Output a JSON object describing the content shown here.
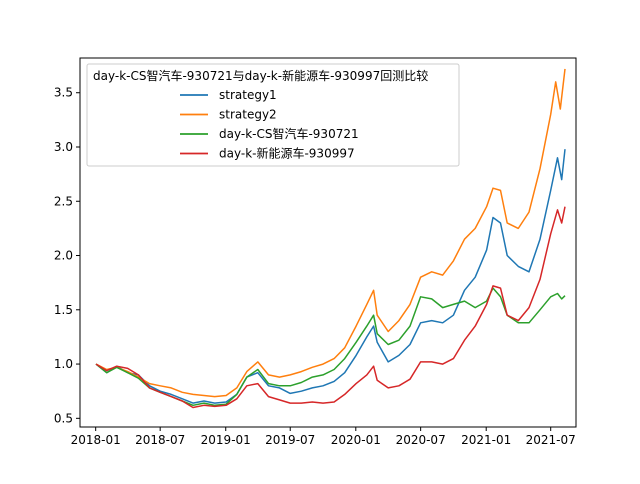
{
  "chart_data": {
    "type": "line",
    "xlabel": "",
    "ylabel": "",
    "xlim": [
      "2017-11-18",
      "2021-09-10"
    ],
    "ylim": [
      0.42,
      3.82
    ],
    "xticks": [
      "2018-01",
      "2018-07",
      "2019-01",
      "2019-07",
      "2020-01",
      "2020-07",
      "2021-01",
      "2021-07"
    ],
    "yticks": [
      "0.5",
      "1.0",
      "1.5",
      "2.0",
      "2.5",
      "3.0",
      "3.5"
    ],
    "legend": {
      "title": "day-k-CS智汽车-930721与day-k-新能源车-930997回测比较",
      "position": "upper-left"
    },
    "grid": false,
    "series": [
      {
        "name": "strategy1",
        "color": "#1f77b4",
        "points": [
          [
            "2018-01-02",
            1.0
          ],
          [
            "2018-02-01",
            0.92
          ],
          [
            "2018-03-01",
            0.98
          ],
          [
            "2018-04-01",
            0.92
          ],
          [
            "2018-05-01",
            0.9
          ],
          [
            "2018-06-01",
            0.8
          ],
          [
            "2018-07-01",
            0.75
          ],
          [
            "2018-08-01",
            0.72
          ],
          [
            "2018-09-01",
            0.68
          ],
          [
            "2018-10-01",
            0.64
          ],
          [
            "2018-11-01",
            0.66
          ],
          [
            "2018-12-01",
            0.64
          ],
          [
            "2019-01-02",
            0.65
          ],
          [
            "2019-02-01",
            0.72
          ],
          [
            "2019-03-01",
            0.88
          ],
          [
            "2019-04-01",
            0.92
          ],
          [
            "2019-05-01",
            0.8
          ],
          [
            "2019-06-01",
            0.78
          ],
          [
            "2019-07-01",
            0.73
          ],
          [
            "2019-08-01",
            0.75
          ],
          [
            "2019-09-01",
            0.78
          ],
          [
            "2019-10-01",
            0.8
          ],
          [
            "2019-11-01",
            0.84
          ],
          [
            "2019-12-01",
            0.92
          ],
          [
            "2020-01-02",
            1.08
          ],
          [
            "2020-02-01",
            1.25
          ],
          [
            "2020-02-20",
            1.35
          ],
          [
            "2020-03-01",
            1.2
          ],
          [
            "2020-04-01",
            1.02
          ],
          [
            "2020-05-01",
            1.08
          ],
          [
            "2020-06-01",
            1.18
          ],
          [
            "2020-07-01",
            1.38
          ],
          [
            "2020-08-01",
            1.4
          ],
          [
            "2020-09-01",
            1.38
          ],
          [
            "2020-10-01",
            1.45
          ],
          [
            "2020-11-01",
            1.68
          ],
          [
            "2020-12-01",
            1.8
          ],
          [
            "2021-01-02",
            2.05
          ],
          [
            "2021-01-20",
            2.35
          ],
          [
            "2021-02-10",
            2.3
          ],
          [
            "2021-03-01",
            2.0
          ],
          [
            "2021-04-01",
            1.9
          ],
          [
            "2021-05-01",
            1.85
          ],
          [
            "2021-06-01",
            2.15
          ],
          [
            "2021-07-01",
            2.6
          ],
          [
            "2021-07-20",
            2.9
          ],
          [
            "2021-08-01",
            2.7
          ],
          [
            "2021-08-10",
            2.98
          ]
        ]
      },
      {
        "name": "strategy2",
        "color": "#ff7f0e",
        "points": [
          [
            "2018-01-02",
            1.0
          ],
          [
            "2018-02-01",
            0.95
          ],
          [
            "2018-03-01",
            0.97
          ],
          [
            "2018-04-01",
            0.93
          ],
          [
            "2018-05-01",
            0.88
          ],
          [
            "2018-06-01",
            0.82
          ],
          [
            "2018-07-01",
            0.8
          ],
          [
            "2018-08-01",
            0.78
          ],
          [
            "2018-09-01",
            0.74
          ],
          [
            "2018-10-01",
            0.72
          ],
          [
            "2018-11-01",
            0.71
          ],
          [
            "2018-12-01",
            0.7
          ],
          [
            "2019-01-02",
            0.71
          ],
          [
            "2019-02-01",
            0.78
          ],
          [
            "2019-03-01",
            0.93
          ],
          [
            "2019-04-01",
            1.02
          ],
          [
            "2019-05-01",
            0.9
          ],
          [
            "2019-06-01",
            0.88
          ],
          [
            "2019-07-01",
            0.9
          ],
          [
            "2019-08-01",
            0.93
          ],
          [
            "2019-09-01",
            0.97
          ],
          [
            "2019-10-01",
            1.0
          ],
          [
            "2019-11-01",
            1.05
          ],
          [
            "2019-12-01",
            1.15
          ],
          [
            "2020-01-02",
            1.35
          ],
          [
            "2020-02-01",
            1.55
          ],
          [
            "2020-02-20",
            1.68
          ],
          [
            "2020-03-01",
            1.45
          ],
          [
            "2020-04-01",
            1.3
          ],
          [
            "2020-05-01",
            1.4
          ],
          [
            "2020-06-01",
            1.55
          ],
          [
            "2020-07-01",
            1.8
          ],
          [
            "2020-08-01",
            1.85
          ],
          [
            "2020-09-01",
            1.82
          ],
          [
            "2020-10-01",
            1.95
          ],
          [
            "2020-11-01",
            2.15
          ],
          [
            "2020-12-01",
            2.25
          ],
          [
            "2021-01-02",
            2.45
          ],
          [
            "2021-01-20",
            2.62
          ],
          [
            "2021-02-10",
            2.6
          ],
          [
            "2021-03-01",
            2.3
          ],
          [
            "2021-04-01",
            2.25
          ],
          [
            "2021-05-01",
            2.4
          ],
          [
            "2021-06-01",
            2.8
          ],
          [
            "2021-07-01",
            3.3
          ],
          [
            "2021-07-15",
            3.6
          ],
          [
            "2021-07-28",
            3.35
          ],
          [
            "2021-08-10",
            3.72
          ]
        ]
      },
      {
        "name": "day-k-CS智汽车-930721",
        "color": "#2ca02c",
        "points": [
          [
            "2018-01-02",
            1.0
          ],
          [
            "2018-02-01",
            0.92
          ],
          [
            "2018-03-01",
            0.97
          ],
          [
            "2018-04-01",
            0.92
          ],
          [
            "2018-05-01",
            0.87
          ],
          [
            "2018-06-01",
            0.78
          ],
          [
            "2018-07-01",
            0.74
          ],
          [
            "2018-08-01",
            0.7
          ],
          [
            "2018-09-01",
            0.66
          ],
          [
            "2018-10-01",
            0.62
          ],
          [
            "2018-11-01",
            0.64
          ],
          [
            "2018-12-01",
            0.62
          ],
          [
            "2019-01-02",
            0.63
          ],
          [
            "2019-02-01",
            0.72
          ],
          [
            "2019-03-01",
            0.88
          ],
          [
            "2019-04-01",
            0.95
          ],
          [
            "2019-05-01",
            0.82
          ],
          [
            "2019-06-01",
            0.8
          ],
          [
            "2019-07-01",
            0.8
          ],
          [
            "2019-08-01",
            0.83
          ],
          [
            "2019-09-01",
            0.88
          ],
          [
            "2019-10-01",
            0.9
          ],
          [
            "2019-11-01",
            0.95
          ],
          [
            "2019-12-01",
            1.05
          ],
          [
            "2020-01-02",
            1.2
          ],
          [
            "2020-02-01",
            1.35
          ],
          [
            "2020-02-20",
            1.45
          ],
          [
            "2020-03-01",
            1.28
          ],
          [
            "2020-04-01",
            1.18
          ],
          [
            "2020-05-01",
            1.22
          ],
          [
            "2020-06-01",
            1.35
          ],
          [
            "2020-07-01",
            1.62
          ],
          [
            "2020-08-01",
            1.6
          ],
          [
            "2020-09-01",
            1.52
          ],
          [
            "2020-10-01",
            1.55
          ],
          [
            "2020-11-01",
            1.58
          ],
          [
            "2020-12-01",
            1.52
          ],
          [
            "2021-01-02",
            1.58
          ],
          [
            "2021-01-20",
            1.7
          ],
          [
            "2021-02-10",
            1.62
          ],
          [
            "2021-03-01",
            1.45
          ],
          [
            "2021-04-01",
            1.38
          ],
          [
            "2021-05-01",
            1.38
          ],
          [
            "2021-06-01",
            1.5
          ],
          [
            "2021-07-01",
            1.62
          ],
          [
            "2021-07-20",
            1.65
          ],
          [
            "2021-08-01",
            1.6
          ],
          [
            "2021-08-10",
            1.63
          ]
        ]
      },
      {
        "name": "day-k-新能源车-930997",
        "color": "#d62728",
        "points": [
          [
            "2018-01-02",
            1.0
          ],
          [
            "2018-02-01",
            0.94
          ],
          [
            "2018-03-01",
            0.98
          ],
          [
            "2018-04-01",
            0.96
          ],
          [
            "2018-05-01",
            0.9
          ],
          [
            "2018-06-01",
            0.78
          ],
          [
            "2018-07-01",
            0.74
          ],
          [
            "2018-08-01",
            0.7
          ],
          [
            "2018-09-01",
            0.66
          ],
          [
            "2018-10-01",
            0.6
          ],
          [
            "2018-11-01",
            0.62
          ],
          [
            "2018-12-01",
            0.61
          ],
          [
            "2019-01-02",
            0.62
          ],
          [
            "2019-02-01",
            0.68
          ],
          [
            "2019-03-01",
            0.8
          ],
          [
            "2019-04-01",
            0.82
          ],
          [
            "2019-05-01",
            0.7
          ],
          [
            "2019-06-01",
            0.67
          ],
          [
            "2019-07-01",
            0.64
          ],
          [
            "2019-08-01",
            0.64
          ],
          [
            "2019-09-01",
            0.65
          ],
          [
            "2019-10-01",
            0.64
          ],
          [
            "2019-11-01",
            0.65
          ],
          [
            "2019-12-01",
            0.72
          ],
          [
            "2020-01-02",
            0.82
          ],
          [
            "2020-02-01",
            0.9
          ],
          [
            "2020-02-20",
            0.98
          ],
          [
            "2020-03-01",
            0.85
          ],
          [
            "2020-04-01",
            0.78
          ],
          [
            "2020-05-01",
            0.8
          ],
          [
            "2020-06-01",
            0.86
          ],
          [
            "2020-07-01",
            1.02
          ],
          [
            "2020-08-01",
            1.02
          ],
          [
            "2020-09-01",
            1.0
          ],
          [
            "2020-10-01",
            1.05
          ],
          [
            "2020-11-01",
            1.22
          ],
          [
            "2020-12-01",
            1.35
          ],
          [
            "2021-01-02",
            1.55
          ],
          [
            "2021-01-20",
            1.72
          ],
          [
            "2021-02-10",
            1.7
          ],
          [
            "2021-03-01",
            1.45
          ],
          [
            "2021-04-01",
            1.4
          ],
          [
            "2021-05-01",
            1.52
          ],
          [
            "2021-06-01",
            1.78
          ],
          [
            "2021-07-01",
            2.2
          ],
          [
            "2021-07-20",
            2.42
          ],
          [
            "2021-08-01",
            2.3
          ],
          [
            "2021-08-10",
            2.45
          ]
        ]
      }
    ]
  }
}
